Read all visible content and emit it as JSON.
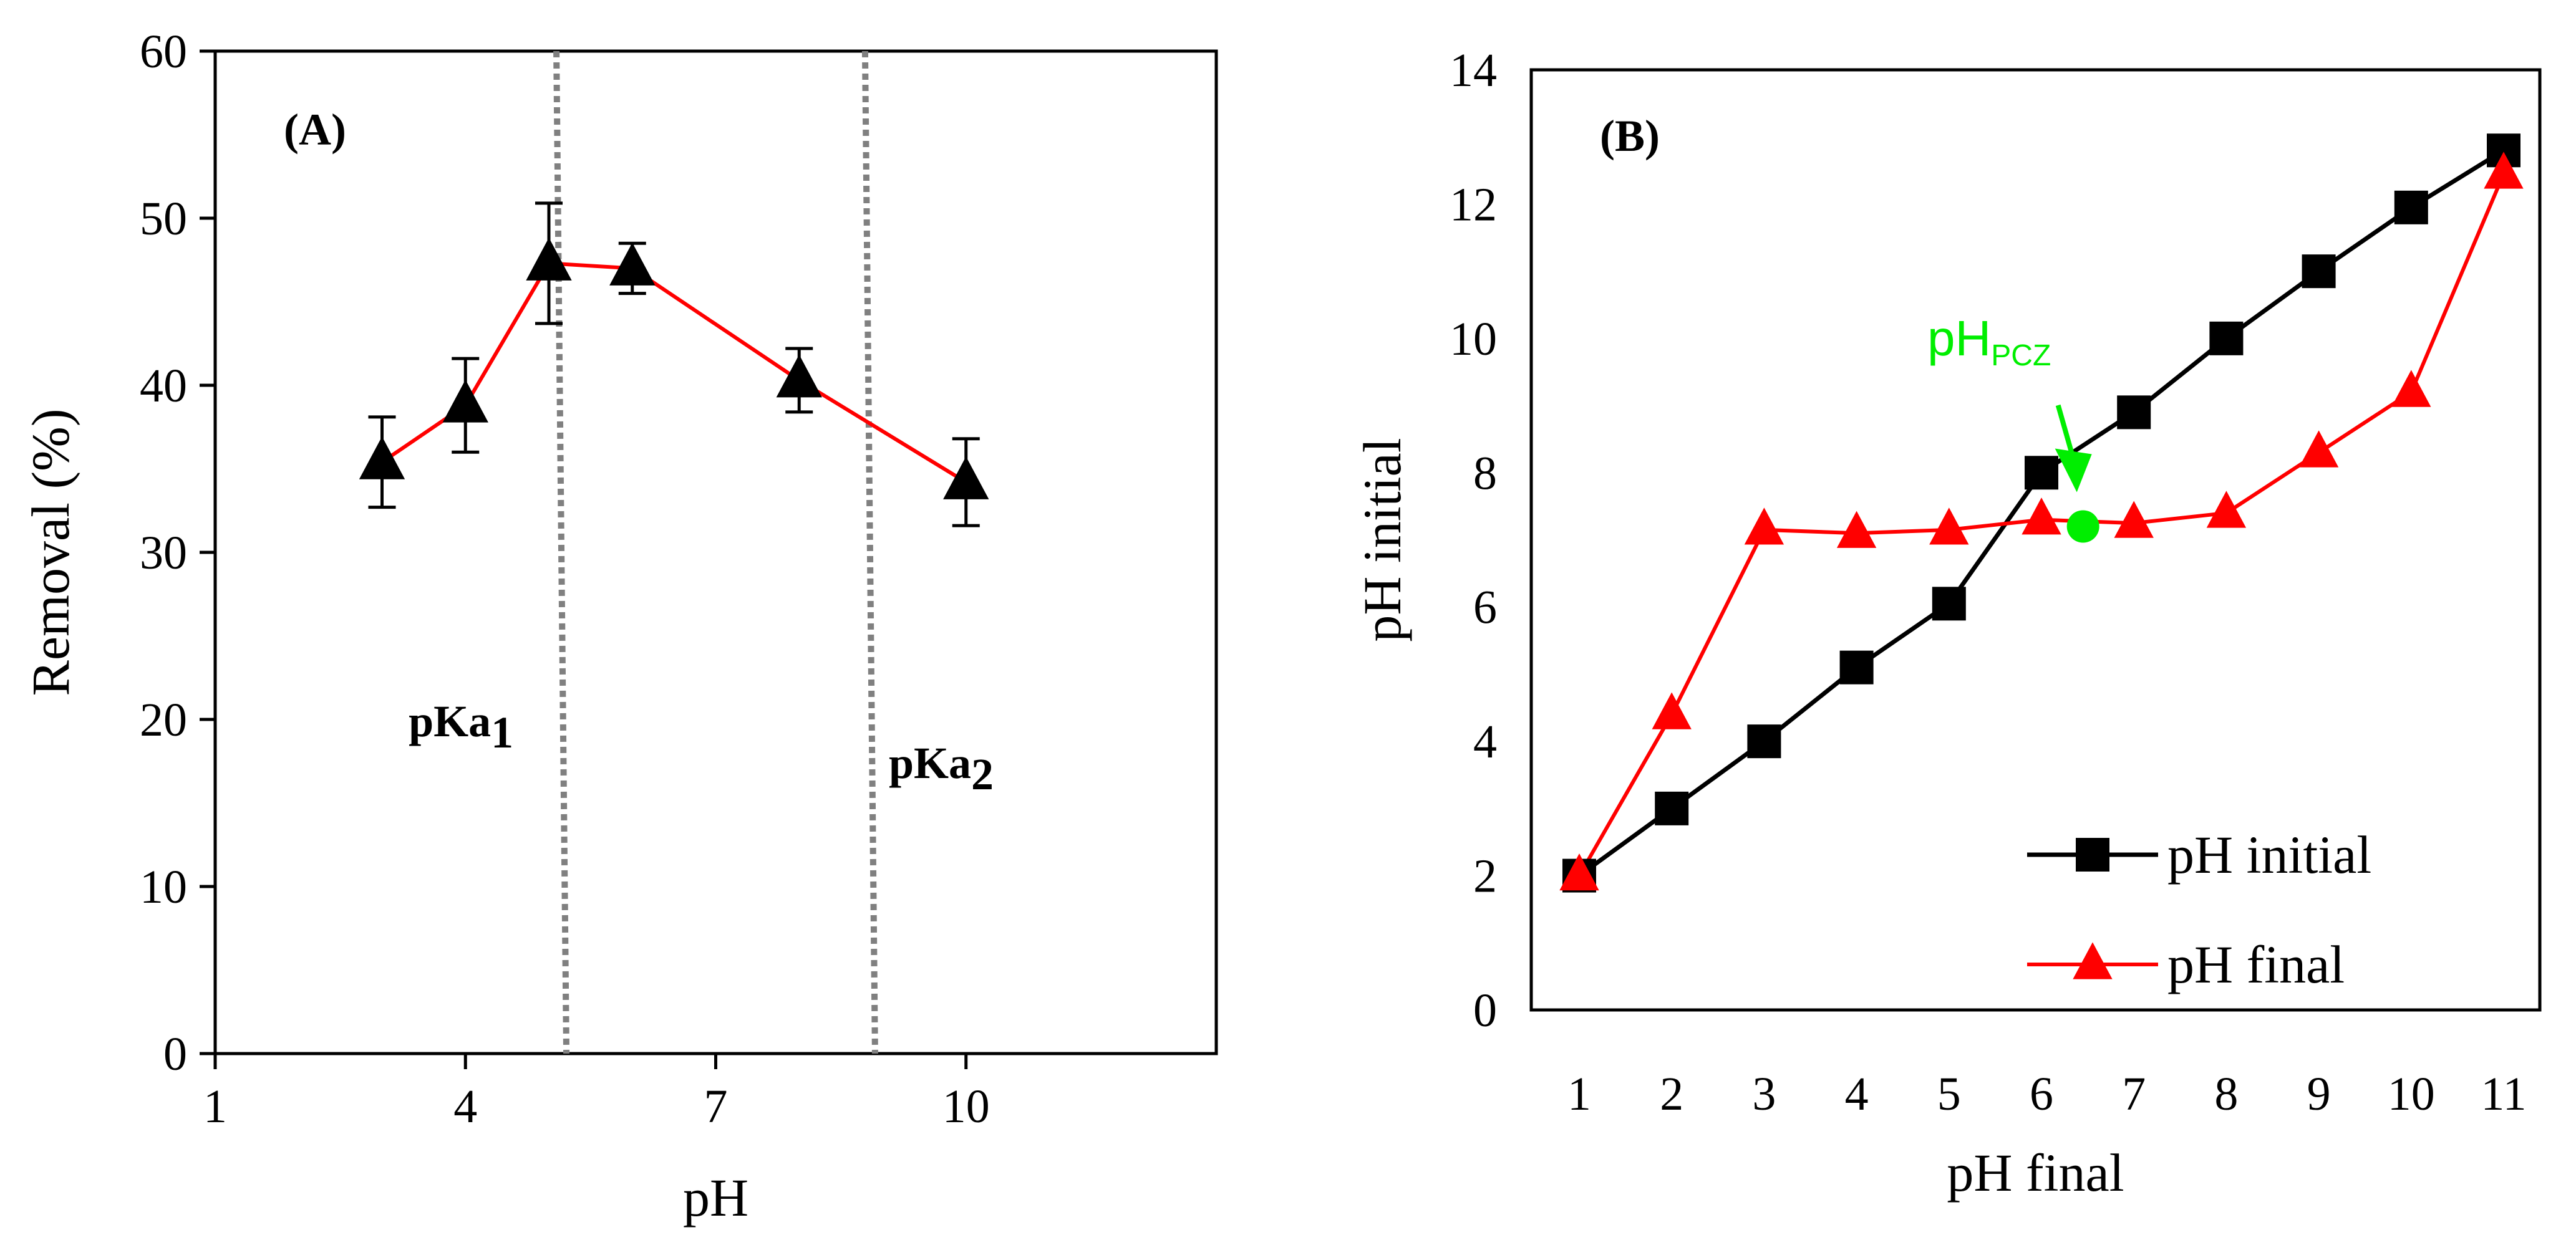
{
  "colors": {
    "black": "#000000",
    "red": "#ff0000",
    "green": "#00ee00",
    "grid_dotted": "#808080"
  },
  "chart_data": [
    {
      "panel": "(A)",
      "type": "line",
      "xlabel": "pH",
      "ylabel": "Removal (%)",
      "xlim": [
        1,
        13
      ],
      "ylim": [
        0,
        60
      ],
      "xticks": [
        1,
        4,
        7,
        10
      ],
      "yticks": [
        0,
        10,
        20,
        30,
        40,
        50,
        60
      ],
      "grid": false,
      "series": [
        {
          "name": "Removal",
          "marker": "triangle",
          "line_color": "#ff0000",
          "marker_color": "#000000",
          "x": [
            3,
            4,
            5,
            6,
            8,
            10
          ],
          "y": [
            35.4,
            38.8,
            47.3,
            47.0,
            40.3,
            34.2
          ],
          "error": [
            2.7,
            2.8,
            3.6,
            1.5,
            1.9,
            2.6
          ]
        }
      ],
      "vlines": [
        {
          "x": 5.15,
          "label": "pKa",
          "sub": "1",
          "style": "dotted"
        },
        {
          "x": 8.85,
          "label": "pKa",
          "sub": "2",
          "style": "dotted"
        }
      ]
    },
    {
      "panel": "(B)",
      "type": "line",
      "xlabel": "pH final",
      "ylabel": "pH initial",
      "categories": [
        "1",
        "2",
        "3",
        "4",
        "5",
        "6",
        "7",
        "8",
        "9",
        "10",
        "11"
      ],
      "ylim": [
        0,
        14
      ],
      "yticks": [
        0,
        2,
        4,
        6,
        8,
        10,
        12,
        14
      ],
      "grid": false,
      "legend_position": "bottom-right",
      "series": [
        {
          "name": "pH initial",
          "marker": "square",
          "color": "#000000",
          "values": [
            2.0,
            3.0,
            4.0,
            5.1,
            6.05,
            8.0,
            8.9,
            10.0,
            11.0,
            11.95,
            12.8
          ]
        },
        {
          "name": "pH final",
          "marker": "triangle",
          "color": "#ff0000",
          "values": [
            2.0,
            4.4,
            7.15,
            7.1,
            7.15,
            7.3,
            7.25,
            7.4,
            8.3,
            9.2,
            12.45
          ]
        }
      ],
      "annotation": {
        "label": "pH",
        "sub": "PCZ",
        "x_index": 5.45,
        "y": 7.2
      }
    }
  ]
}
